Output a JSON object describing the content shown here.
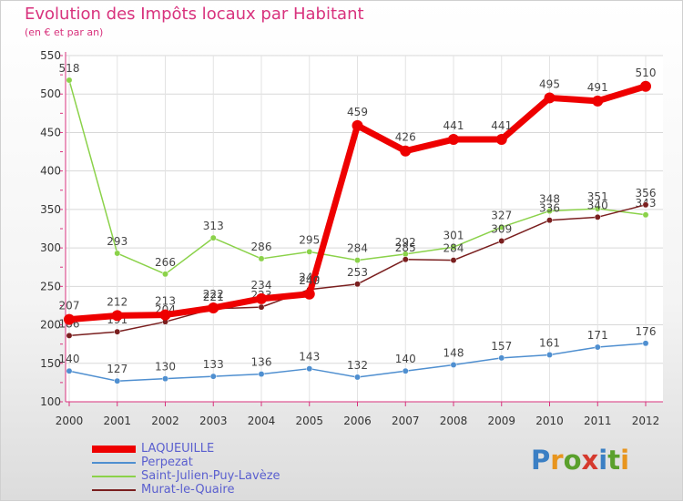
{
  "title": "Evolution des Impôts locaux par Habitant",
  "subtitle": "(en € et par an)",
  "logo": {
    "text": "Proxiti",
    "colors": [
      "#3b7fc4",
      "#e8951e",
      "#5aa02c",
      "#d53a2e",
      "#3b7fc4",
      "#5aa02c",
      "#e8951e"
    ]
  },
  "chart_data": {
    "type": "line",
    "x": [
      "2000",
      "2001",
      "2002",
      "2003",
      "2004",
      "2005",
      "2006",
      "2007",
      "2008",
      "2009",
      "2010",
      "2011",
      "2012"
    ],
    "ylim": [
      100,
      550
    ],
    "yticks": [
      100,
      150,
      200,
      250,
      300,
      350,
      400,
      450,
      500,
      550
    ],
    "grid": true,
    "legend_position": "bottom-left",
    "series": [
      {
        "name": "Saint-Julien-Puy-Lavèze",
        "color": "#8bd24a",
        "values": [
          518,
          293,
          266,
          313,
          286,
          295,
          284,
          292,
          301,
          327,
          348,
          351,
          343
        ],
        "labels": [
          "518",
          "293",
          "266",
          "313",
          "286",
          "295",
          "284",
          "292",
          "301",
          "327",
          "348",
          "351",
          "343"
        ]
      },
      {
        "name": "Murat-le-Quaire",
        "color": "#7a1f1f",
        "values": [
          186,
          191,
          204,
          221,
          223,
          246,
          253,
          285,
          284,
          309,
          336,
          340,
          356
        ],
        "labels": [
          "186",
          "191",
          "204",
          "221",
          "223",
          "246",
          "253",
          "285",
          "284",
          "309",
          "336",
          "340",
          "356"
        ]
      },
      {
        "name": "Perpezat",
        "color": "#4f8fd0",
        "values": [
          140,
          127,
          130,
          133,
          136,
          143,
          132,
          140,
          148,
          157,
          161,
          171,
          176
        ],
        "labels": [
          "140",
          "127",
          "130",
          "133",
          "136",
          "143",
          "132",
          "140",
          "148",
          "157",
          "161",
          "171",
          "176"
        ]
      },
      {
        "name": "LAQUEUILLE",
        "color": "#ee0000",
        "values": [
          207,
          212,
          213,
          222,
          234,
          240,
          459,
          426,
          441,
          441,
          495,
          491,
          510
        ],
        "labels": [
          "207",
          "212",
          "213",
          "222",
          "234",
          "240",
          "459",
          "426",
          "441",
          "441",
          "495",
          "491",
          "510"
        ]
      }
    ],
    "legend_order": [
      "LAQUEUILLE",
      "Perpezat",
      "Saint-Julien-Puy-Lavèze",
      "Murat-le-Quaire"
    ]
  }
}
